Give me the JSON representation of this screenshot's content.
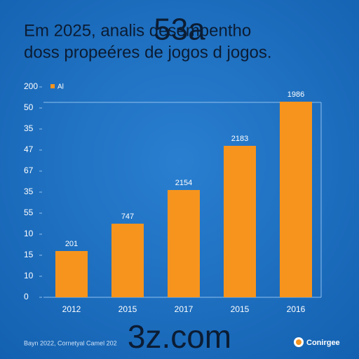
{
  "chart_data": {
    "type": "bar",
    "title_lines": [
      "Em 2025, analis desempentho",
      "doss propeéres de jogos d jogos."
    ],
    "overlay": "53a",
    "legend": "Al",
    "categories": [
      "2012",
      "2015",
      "2017",
      "2015",
      "2016"
    ],
    "values": [
      2.2,
      3.5,
      5.1,
      7.2,
      9.3
    ],
    "bar_texts": [
      "201",
      "747",
      "2154",
      "2183",
      "1986"
    ],
    "color": "#f7941d",
    "ylim": [
      0,
      10
    ],
    "yticks": [
      0,
      {
        "value": 1,
        "label": "10"
      },
      {
        "value": 2,
        "label": "15"
      },
      {
        "value": 3,
        "label": "10"
      },
      {
        "value": 4,
        "label": "55"
      },
      {
        "value": 5,
        "label": "35"
      },
      {
        "value": 6,
        "label": "67"
      },
      {
        "value": 7,
        "label": "47"
      },
      {
        "value": 8,
        "label": "35"
      },
      {
        "value": 9,
        "label": "50"
      },
      {
        "value": 10,
        "label": "200"
      }
    ],
    "grid": false,
    "watermark": "3z.com",
    "footer_left": "Bayn 2022, Cornetyal Camel 202",
    "footer_right": "Conirgee"
  }
}
